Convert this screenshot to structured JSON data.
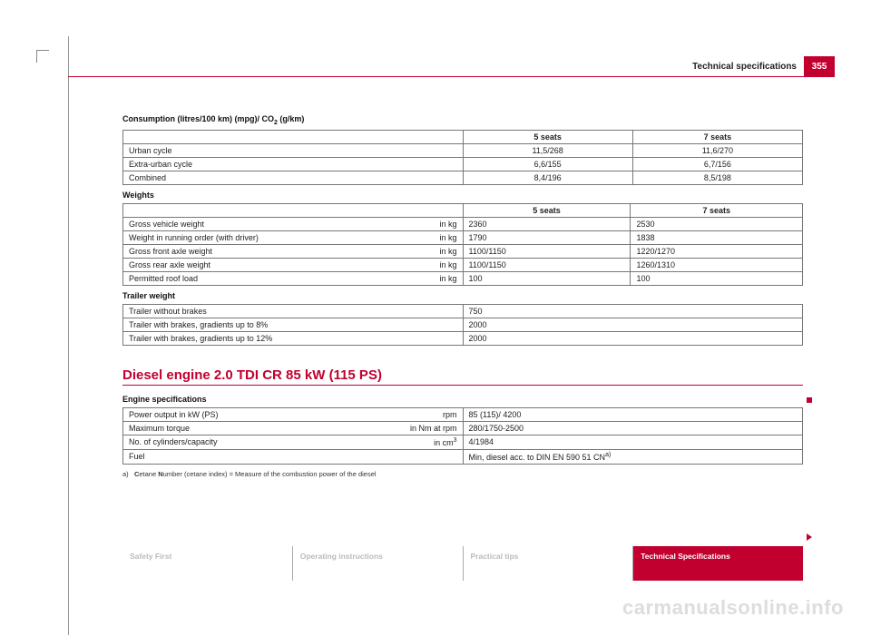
{
  "header": {
    "section": "Technical specifications",
    "page_number": "355"
  },
  "consumption": {
    "title_prefix": "Consumption (litres/100 km) (mpg)/ CO",
    "title_sub": "2",
    "title_suffix": " (g/km)",
    "col_a": "5 seats",
    "col_b": "7 seats",
    "rows": [
      {
        "label": "Urban cycle",
        "a": "11,5/268",
        "b": "11,6/270"
      },
      {
        "label": "Extra-urban cycle",
        "a": "6,6/155",
        "b": "6,7/156"
      },
      {
        "label": "Combined",
        "a": "8,4/196",
        "b": "8,5/198"
      }
    ]
  },
  "weights": {
    "title": "Weights",
    "col_a": "5 seats",
    "col_b": "7 seats",
    "rows": [
      {
        "label": "Gross vehicle weight",
        "unit": "in kg",
        "a": "2360",
        "b": "2530"
      },
      {
        "label": "Weight in running order (with driver)",
        "unit": "in kg",
        "a": "1790",
        "b": "1838"
      },
      {
        "label": "Gross front axle weight",
        "unit": "in kg",
        "a": "1100/1150",
        "b": "1220/1270"
      },
      {
        "label": "Gross rear axle weight",
        "unit": "in kg",
        "a": "1100/1150",
        "b": "1260/1310"
      },
      {
        "label": "Permitted roof load",
        "unit": "in kg",
        "a": "100",
        "b": "100"
      }
    ]
  },
  "trailer": {
    "title": "Trailer weight",
    "rows": [
      {
        "label": "Trailer without brakes",
        "v": "750"
      },
      {
        "label": "Trailer with brakes, gradients up to 8%",
        "v": "2000"
      },
      {
        "label": "Trailer with brakes, gradients up to 12%",
        "v": "2000"
      }
    ]
  },
  "engine_section": {
    "heading": "Diesel engine 2.0 TDI CR 85 kW (115 PS)"
  },
  "engine_spec": {
    "title": "Engine specifications",
    "rows": [
      {
        "label": "Power output in kW (PS)",
        "unit": "rpm",
        "v": "85 (115)/ 4200"
      },
      {
        "label": "Maximum torque",
        "unit": "in Nm at rpm",
        "v": "280/1750-2500"
      },
      {
        "label": "No. of cylinders/capacity",
        "unit_prefix": "in cm",
        "unit_sup": "3",
        "v": "4/1984"
      },
      {
        "label": "Fuel",
        "v_prefix": "Min, diesel acc. to DIN EN 590 51 CN",
        "v_sup": "a)"
      }
    ],
    "footnote_mark": "a)",
    "footnote_text": "Cetane Number (cetane index) = Measure of the combustion power of the diesel",
    "footnote_bold": "C"
  },
  "tabs": {
    "items": [
      {
        "label": "Safety First"
      },
      {
        "label": "Operating instructions"
      },
      {
        "label": "Practical tips"
      },
      {
        "label": "Technical Specifications"
      }
    ],
    "active_index": 3
  },
  "watermark": "carmanualsonline.info",
  "colors": {
    "accent": "#c2002f",
    "border": "#777",
    "muted_text": "#bbb"
  }
}
